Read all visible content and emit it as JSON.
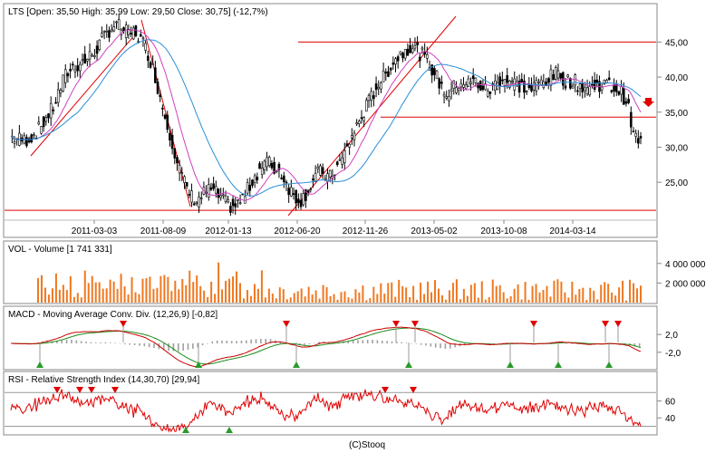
{
  "colors": {
    "frame": "#888888",
    "trend": "#e00000",
    "ma_fast": "#d040c0",
    "ma_slow": "#2a8fd8",
    "volume": "#f07820",
    "macd_line": "#cc0000",
    "signal_line": "#1a8a1a",
    "histogram": "#a0a0a0",
    "rsi_line": "#e00000",
    "buy_marker": "#2a9a2a",
    "sell_marker": "#e00000"
  },
  "footer": "(C)Stooq",
  "chart_data": [
    {
      "type": "candlestick",
      "title": "LTS [Open: 35,50  High: 35,99  Low: 29,50  Close: 30,75] (-12,7%)",
      "x_ticks": [
        "2011-03-03",
        "2011-08-09",
        "2012-01-13",
        "2012-06-20",
        "2012-11-26",
        "2013-05-02",
        "2013-10-08",
        "2014-03-14"
      ],
      "y_ticks": [
        "45,00",
        "40,00",
        "35,00",
        "30,00",
        "25,00"
      ],
      "ylim": [
        20.5,
        48.8
      ],
      "grid": false,
      "close_series": [
        31.5,
        31.2,
        31,
        31.5,
        32.5,
        34,
        35.5,
        38,
        40.5,
        41.5,
        42,
        42.5,
        43.5,
        45,
        46.5,
        47.5,
        47,
        46,
        46.5,
        45,
        43,
        39.5,
        35.5,
        32,
        28,
        25,
        23,
        22.5,
        23.5,
        24,
        23,
        22,
        21.5,
        22,
        23.5,
        25.5,
        27,
        28,
        27,
        26.5,
        24.5,
        23,
        22.5,
        24,
        26,
        26.5,
        25.5,
        27,
        28.5,
        31,
        33,
        35,
        37,
        39,
        40,
        42,
        43,
        44,
        44.5,
        43.5,
        42.5,
        41,
        39,
        37.5,
        38.5,
        39.5,
        39,
        39.5,
        38.5,
        38,
        39,
        40,
        39.5,
        39,
        38.5,
        38,
        39,
        39.5,
        40,
        40.5,
        39.5,
        39.5,
        39,
        38.5,
        38.5,
        39,
        39,
        38.5,
        38,
        36.5,
        31.5,
        30.75
      ],
      "horizontal_levels": [
        45.0,
        34.3,
        21.0
      ],
      "overlays": [
        "moving average (fast)",
        "moving average (slow)",
        "trend lines"
      ]
    },
    {
      "type": "bar",
      "title": "VOL - Volume [1 741 331]",
      "y_ticks": [
        "4 000 000",
        "2 000 000"
      ],
      "ylim": [
        0,
        5000000
      ],
      "last_value": 1741331
    },
    {
      "type": "line",
      "title": "MACD - Moving Average Conv. Div. (12,26,9) [-0,82]",
      "y_ticks": [
        "2,0",
        "-2,0"
      ],
      "series": [
        "MACD",
        "Signal",
        "Histogram"
      ],
      "ylim": [
        -5.5,
        5.5
      ],
      "last_value": -0.82
    },
    {
      "type": "line",
      "title": "RSI - Relative Strength Index (14,30,70) [29,94]",
      "y_ticks": [
        "60",
        "40"
      ],
      "ylim": [
        22,
        80
      ],
      "levels": [
        30,
        70
      ],
      "last_value": 29.94
    }
  ]
}
